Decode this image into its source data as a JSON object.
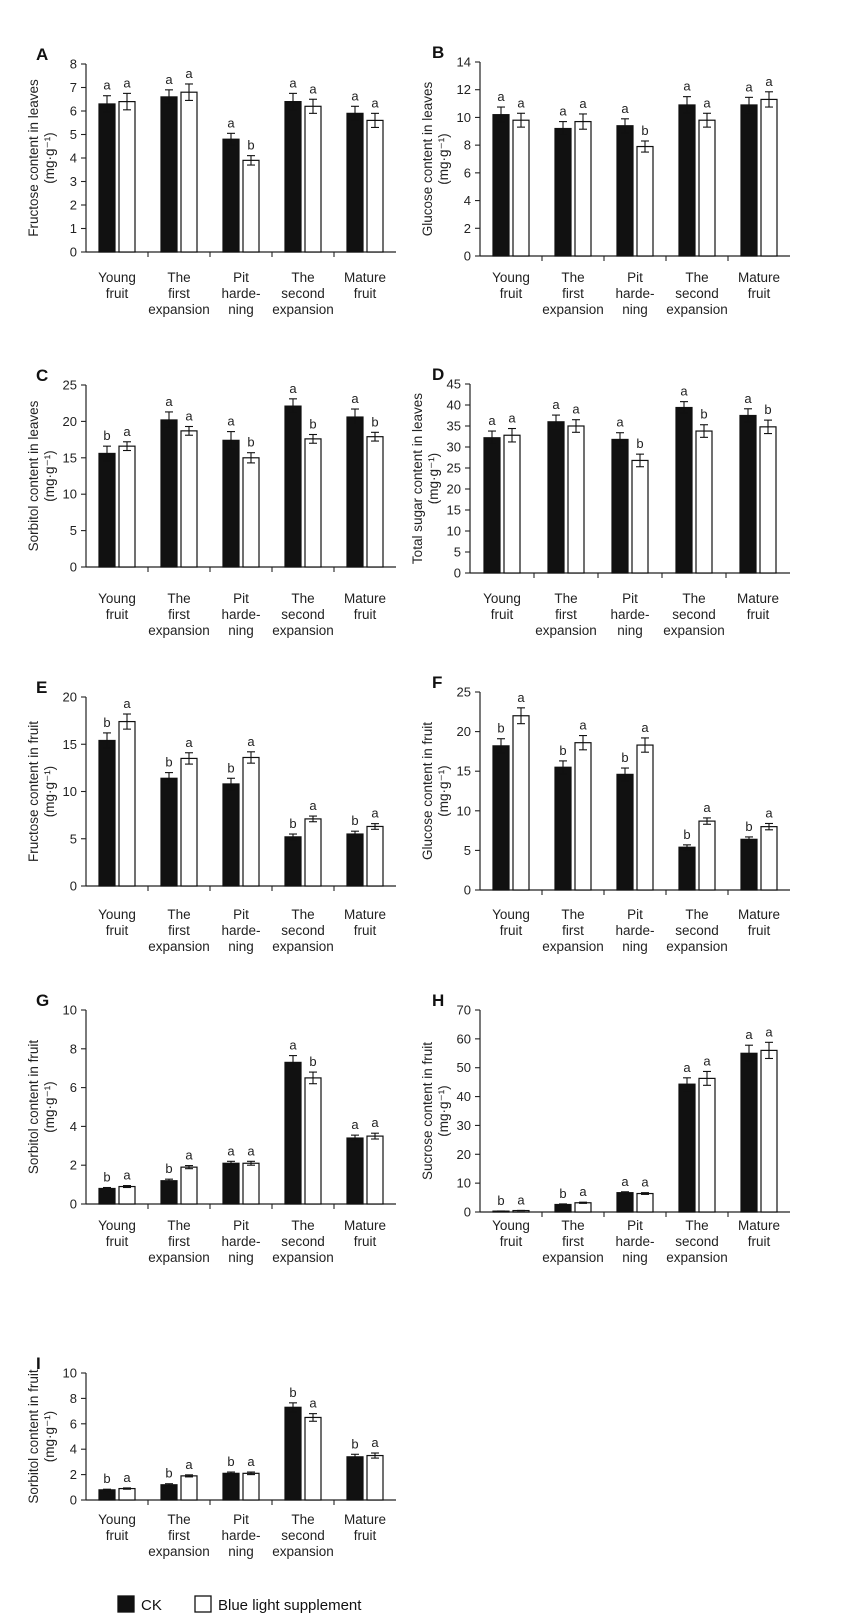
{
  "legend": [
    {
      "label": "CK",
      "color": "#111111"
    },
    {
      "label": "Blue light supplement",
      "color": "#ffffff"
    }
  ],
  "chart_data": [
    {
      "panel": "A",
      "type": "bar",
      "ylabel": "Fructose content in leaves",
      "yunit": "(mg·g⁻¹)",
      "ylim": [
        0,
        8
      ],
      "yticks": [
        0,
        1,
        2,
        3,
        4,
        5,
        6,
        7,
        8
      ],
      "categories": [
        [
          "Young",
          "fruit"
        ],
        [
          "The",
          "first",
          "expansion"
        ],
        [
          "Pit",
          "harde-",
          "ning"
        ],
        [
          "The",
          "second",
          "expansion"
        ],
        [
          "Mature",
          "fruit"
        ]
      ],
      "series": [
        {
          "name": "CK",
          "values": [
            6.3,
            6.6,
            4.8,
            6.4,
            5.9
          ],
          "errors": [
            0.35,
            0.3,
            0.25,
            0.35,
            0.3
          ],
          "letters": [
            "a",
            "a",
            "a",
            "a",
            "a"
          ]
        },
        {
          "name": "Blue light supplement",
          "values": [
            6.4,
            6.8,
            3.9,
            6.2,
            5.6
          ],
          "errors": [
            0.35,
            0.35,
            0.2,
            0.3,
            0.3
          ],
          "letters": [
            "a",
            "a",
            "b",
            "a",
            "a"
          ]
        }
      ]
    },
    {
      "panel": "B",
      "type": "bar",
      "ylabel": "Glucose content in leaves",
      "yunit": "(mg·g⁻¹)",
      "ylim": [
        0,
        14
      ],
      "yticks": [
        0,
        2,
        4,
        6,
        8,
        10,
        12,
        14
      ],
      "categories": [
        [
          "Young",
          "fruit"
        ],
        [
          "The",
          "first",
          "expansion"
        ],
        [
          "Pit",
          "harde-",
          "ning"
        ],
        [
          "The",
          "second",
          "expansion"
        ],
        [
          "Mature",
          "fruit"
        ]
      ],
      "series": [
        {
          "name": "CK",
          "values": [
            10.2,
            9.2,
            9.4,
            10.9,
            10.9
          ],
          "errors": [
            0.55,
            0.5,
            0.5,
            0.6,
            0.55
          ],
          "letters": [
            "a",
            "a",
            "a",
            "a",
            "a"
          ]
        },
        {
          "name": "Blue light supplement",
          "values": [
            9.8,
            9.7,
            7.9,
            9.8,
            11.3
          ],
          "errors": [
            0.5,
            0.55,
            0.4,
            0.5,
            0.55
          ],
          "letters": [
            "a",
            "a",
            "b",
            "a",
            "a"
          ]
        }
      ]
    },
    {
      "panel": "C",
      "type": "bar",
      "ylabel": "Sorbitol content in leaves",
      "yunit": "(mg·g⁻¹)",
      "ylim": [
        0,
        25
      ],
      "yticks": [
        0,
        5,
        10,
        15,
        20,
        25
      ],
      "categories": [
        [
          "Young",
          "fruit"
        ],
        [
          "The",
          "first",
          "expansion"
        ],
        [
          "Pit",
          "harde-",
          "ning"
        ],
        [
          "The",
          "second",
          "expansion"
        ],
        [
          "Mature",
          "fruit"
        ]
      ],
      "series": [
        {
          "name": "CK",
          "values": [
            15.6,
            20.2,
            17.4,
            22.1,
            20.6
          ],
          "errors": [
            1.0,
            1.1,
            1.2,
            1.0,
            1.1
          ],
          "letters": [
            "b",
            "a",
            "a",
            "a",
            "a"
          ]
        },
        {
          "name": "Blue light supplement",
          "values": [
            16.6,
            18.7,
            15.0,
            17.6,
            17.9
          ],
          "errors": [
            0.6,
            0.6,
            0.7,
            0.6,
            0.6
          ],
          "letters": [
            "a",
            "a",
            "b",
            "b",
            "b"
          ]
        }
      ]
    },
    {
      "panel": "D",
      "type": "bar",
      "ylabel": "Total sugar content in leaves",
      "yunit": "(mg·g⁻¹)",
      "ylim": [
        0,
        45
      ],
      "yticks": [
        0,
        5,
        10,
        15,
        20,
        25,
        30,
        35,
        40,
        45
      ],
      "categories": [
        [
          "Young",
          "fruit"
        ],
        [
          "The",
          "first",
          "expansion"
        ],
        [
          "Pit",
          "harde-",
          "ning"
        ],
        [
          "The",
          "second",
          "expansion"
        ],
        [
          "Mature",
          "fruit"
        ]
      ],
      "series": [
        {
          "name": "CK",
          "values": [
            32.2,
            36.0,
            31.8,
            39.4,
            37.5
          ],
          "errors": [
            1.6,
            1.6,
            1.6,
            1.4,
            1.6
          ],
          "letters": [
            "a",
            "a",
            "a",
            "a",
            "a"
          ]
        },
        {
          "name": "Blue light supplement",
          "values": [
            32.8,
            35.0,
            26.8,
            33.8,
            34.8
          ],
          "errors": [
            1.6,
            1.5,
            1.5,
            1.5,
            1.6
          ],
          "letters": [
            "a",
            "a",
            "b",
            "b",
            "b"
          ]
        }
      ]
    },
    {
      "panel": "E",
      "type": "bar",
      "ylabel": "Fructose content in fruit",
      "yunit": "(mg·g⁻¹)",
      "ylim": [
        0,
        20
      ],
      "yticks": [
        0,
        5,
        10,
        15,
        20
      ],
      "categories": [
        [
          "Young",
          "fruit"
        ],
        [
          "The",
          "first",
          "expansion"
        ],
        [
          "Pit",
          "harde-",
          "ning"
        ],
        [
          "The",
          "second",
          "expansion"
        ],
        [
          "Mature",
          "fruit"
        ]
      ],
      "series": [
        {
          "name": "CK",
          "values": [
            15.4,
            11.4,
            10.8,
            5.2,
            5.5
          ],
          "errors": [
            0.8,
            0.6,
            0.6,
            0.3,
            0.3
          ],
          "letters": [
            "b",
            "b",
            "b",
            "b",
            "b"
          ]
        },
        {
          "name": "Blue light supplement",
          "values": [
            17.4,
            13.5,
            13.6,
            7.1,
            6.3
          ],
          "errors": [
            0.8,
            0.6,
            0.6,
            0.3,
            0.3
          ],
          "letters": [
            "a",
            "a",
            "a",
            "a",
            "a"
          ]
        }
      ]
    },
    {
      "panel": "F",
      "type": "bar",
      "ylabel": "Glucose content in fruit",
      "yunit": "(mg·g⁻¹)",
      "ylim": [
        0,
        25
      ],
      "yticks": [
        0,
        5,
        10,
        15,
        20,
        25
      ],
      "categories": [
        [
          "Young",
          "fruit"
        ],
        [
          "The",
          "first",
          "expansion"
        ],
        [
          "Pit",
          "harde-",
          "ning"
        ],
        [
          "The",
          "second",
          "expansion"
        ],
        [
          "Mature",
          "fruit"
        ]
      ],
      "series": [
        {
          "name": "CK",
          "values": [
            18.2,
            15.5,
            14.6,
            5.4,
            6.4
          ],
          "errors": [
            0.9,
            0.8,
            0.8,
            0.3,
            0.3
          ],
          "letters": [
            "b",
            "b",
            "b",
            "b",
            "b"
          ]
        },
        {
          "name": "Blue light supplement",
          "values": [
            22.0,
            18.6,
            18.3,
            8.7,
            8.0
          ],
          "errors": [
            1.0,
            0.9,
            0.9,
            0.4,
            0.4
          ],
          "letters": [
            "a",
            "a",
            "a",
            "a",
            "a"
          ]
        }
      ]
    },
    {
      "panel": "G",
      "type": "bar",
      "ylabel": "Sorbitol content in fruit",
      "yunit": "(mg·g⁻¹)",
      "ylim": [
        0,
        10
      ],
      "yticks": [
        0,
        2,
        4,
        6,
        8,
        10
      ],
      "categories": [
        [
          "Young",
          "fruit"
        ],
        [
          "The",
          "first",
          "expansion"
        ],
        [
          "Pit",
          "harde-",
          "ning"
        ],
        [
          "The",
          "second",
          "expansion"
        ],
        [
          "Mature",
          "fruit"
        ]
      ],
      "series": [
        {
          "name": "CK",
          "values": [
            0.8,
            1.2,
            2.1,
            7.3,
            3.4
          ],
          "errors": [
            0.05,
            0.08,
            0.1,
            0.35,
            0.15
          ],
          "letters": [
            "b",
            "b",
            "a",
            "a",
            "a"
          ]
        },
        {
          "name": "Blue light supplement",
          "values": [
            0.9,
            1.9,
            2.1,
            6.5,
            3.5
          ],
          "errors": [
            0.05,
            0.08,
            0.1,
            0.3,
            0.15
          ],
          "letters": [
            "a",
            "a",
            "a",
            "b",
            "a"
          ]
        }
      ]
    },
    {
      "panel": "H",
      "type": "bar",
      "ylabel": "Sucrose content in fruit",
      "yunit": "(mg·g⁻¹)",
      "ylim": [
        0,
        70
      ],
      "yticks": [
        0,
        10,
        20,
        30,
        40,
        50,
        60,
        70
      ],
      "categories": [
        [
          "Young",
          "fruit"
        ],
        [
          "The",
          "first",
          "expansion"
        ],
        [
          "Pit",
          "harde-",
          "ning"
        ],
        [
          "The",
          "second",
          "expansion"
        ],
        [
          "Mature",
          "fruit"
        ]
      ],
      "series": [
        {
          "name": "CK",
          "values": [
            0.3,
            2.6,
            6.7,
            44.3,
            55.0
          ],
          "errors": [
            0.05,
            0.2,
            0.3,
            2.2,
            2.8
          ],
          "letters": [
            "b",
            "b",
            "a",
            "a",
            "a"
          ]
        },
        {
          "name": "Blue light supplement",
          "values": [
            0.5,
            3.2,
            6.4,
            46.3,
            56.0
          ],
          "errors": [
            0.05,
            0.2,
            0.3,
            2.4,
            2.8
          ],
          "letters": [
            "a",
            "a",
            "a",
            "a",
            "a"
          ]
        }
      ]
    },
    {
      "panel": "I",
      "type": "bar",
      "ylabel": "Sorbitol content in fruit",
      "yunit": "(mg·g⁻¹)",
      "ylim": [
        0,
        10
      ],
      "yticks": [
        0,
        2,
        4,
        6,
        8,
        10
      ],
      "categories": [
        [
          "Young",
          "fruit"
        ],
        [
          "The",
          "first",
          "expansion"
        ],
        [
          "Pit",
          "harde-",
          "ning"
        ],
        [
          "The",
          "second",
          "expansion"
        ],
        [
          "Mature",
          "fruit"
        ]
      ],
      "series": [
        {
          "name": "CK",
          "values": [
            0.8,
            1.2,
            2.1,
            7.3,
            3.4
          ],
          "errors": [
            0.05,
            0.08,
            0.1,
            0.35,
            0.2
          ],
          "letters": [
            "b",
            "b",
            "b",
            "b",
            "b"
          ]
        },
        {
          "name": "Blue light supplement",
          "values": [
            0.9,
            1.9,
            2.1,
            6.5,
            3.5
          ],
          "errors": [
            0.05,
            0.08,
            0.1,
            0.3,
            0.2
          ],
          "letters": [
            "a",
            "a",
            "a",
            "a",
            "a"
          ]
        }
      ]
    }
  ]
}
